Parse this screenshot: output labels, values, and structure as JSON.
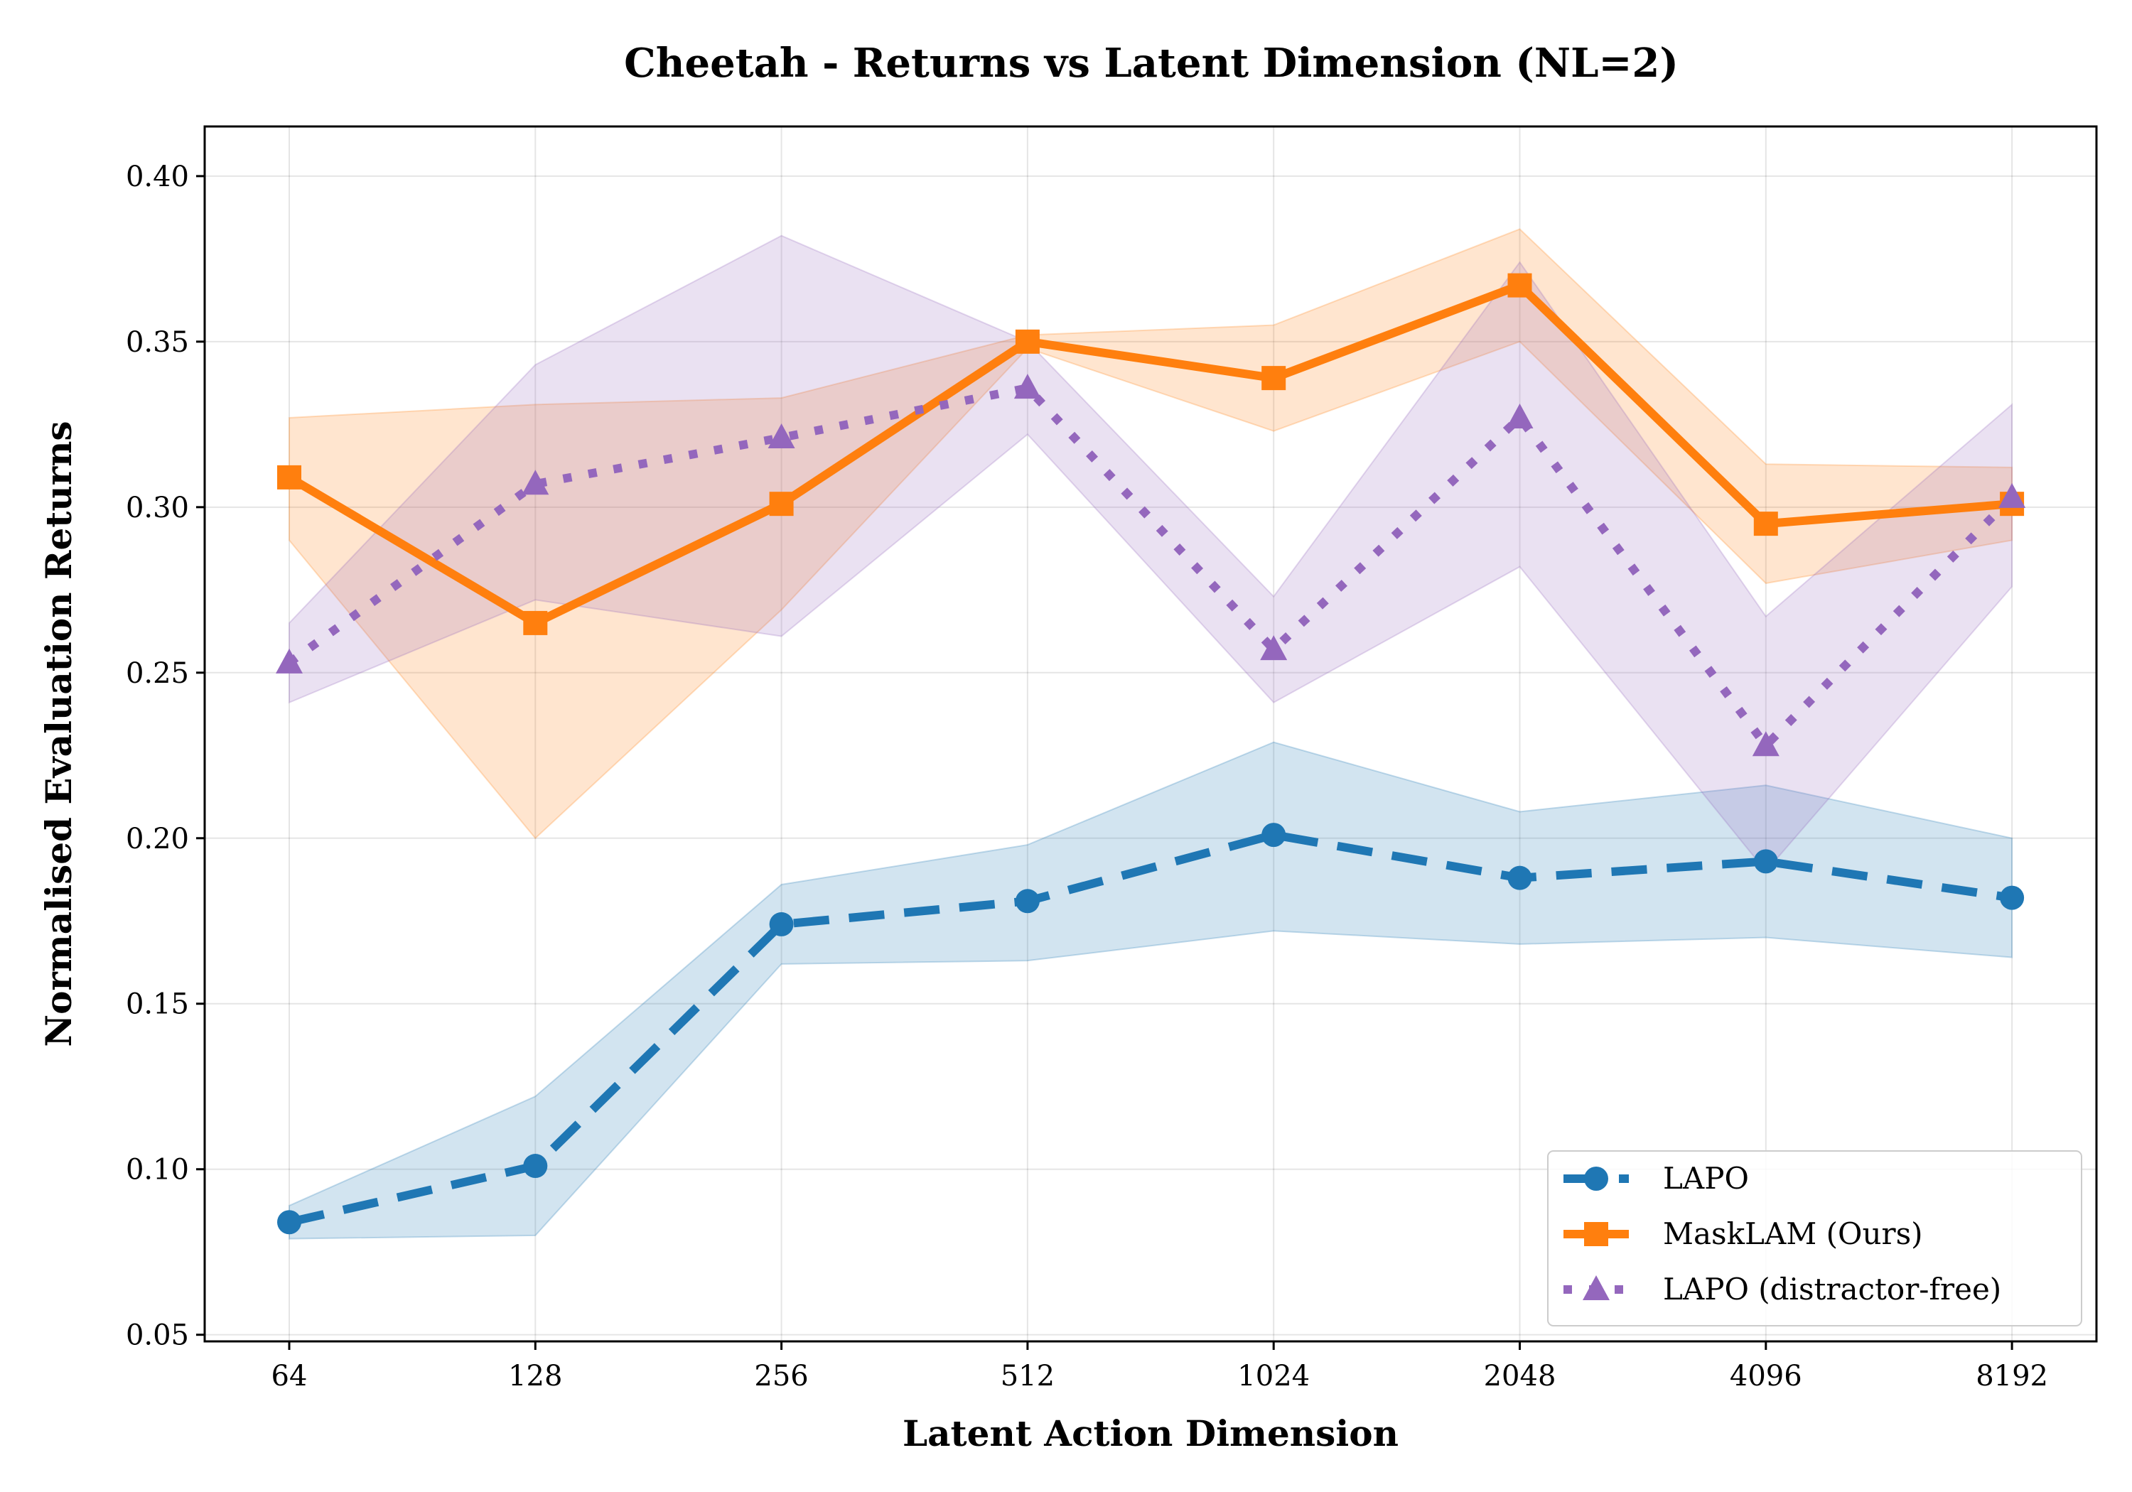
{
  "chart_data": {
    "type": "line",
    "title": "Cheetah - Returns vs Latent Dimension (NL=2)",
    "xlabel": "Latent Action Dimension",
    "ylabel": "Normalised Evaluation Returns",
    "categories": [
      "64",
      "128",
      "256",
      "512",
      "1024",
      "2048",
      "4096",
      "8192"
    ],
    "ylim": [
      0.048,
      0.415
    ],
    "yticks": [
      0.05,
      0.1,
      0.15,
      0.2,
      0.25,
      0.3,
      0.35,
      0.4
    ],
    "ytick_labels": [
      "0.05",
      "0.10",
      "0.15",
      "0.20",
      "0.25",
      "0.30",
      "0.35",
      "0.40"
    ],
    "grid": true,
    "legend_position": "bottom-right",
    "series": [
      {
        "name": "LAPO",
        "color": "#1f77b4",
        "marker": "circle",
        "linestyle": "dashed",
        "values": [
          0.084,
          0.101,
          0.174,
          0.181,
          0.201,
          0.188,
          0.193,
          0.182
        ],
        "lower": [
          0.079,
          0.08,
          0.162,
          0.163,
          0.172,
          0.168,
          0.17,
          0.164
        ],
        "upper": [
          0.089,
          0.122,
          0.186,
          0.198,
          0.229,
          0.208,
          0.216,
          0.2
        ]
      },
      {
        "name": "MaskLAM (Ours)",
        "color": "#ff7f0e",
        "marker": "square",
        "linestyle": "solid",
        "values": [
          0.309,
          0.265,
          0.301,
          0.35,
          0.339,
          0.367,
          0.295,
          0.301
        ],
        "lower": [
          0.29,
          0.2,
          0.269,
          0.348,
          0.323,
          0.35,
          0.277,
          0.29
        ],
        "upper": [
          0.327,
          0.331,
          0.333,
          0.352,
          0.355,
          0.384,
          0.313,
          0.312
        ]
      },
      {
        "name": "LAPO (distractor-free)",
        "color": "#9467bd",
        "marker": "triangle",
        "linestyle": "dotted",
        "values": [
          0.253,
          0.307,
          0.321,
          0.336,
          0.257,
          0.327,
          0.228,
          0.303
        ],
        "lower": [
          0.241,
          0.272,
          0.261,
          0.322,
          0.241,
          0.282,
          0.19,
          0.276
        ],
        "upper": [
          0.265,
          0.343,
          0.382,
          0.35,
          0.273,
          0.374,
          0.267,
          0.331
        ]
      }
    ]
  }
}
